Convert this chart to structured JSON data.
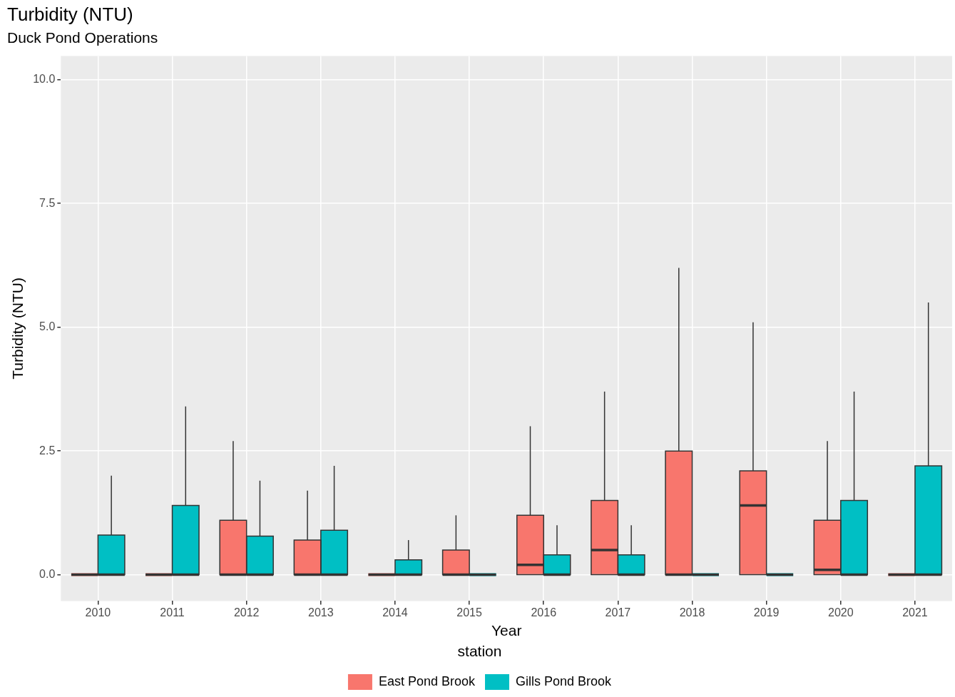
{
  "chart_data": {
    "type": "box",
    "title": "Turbidity (NTU)",
    "subtitle": "Duck Pond Operations",
    "xlabel": "Year",
    "ylabel": "Turbidity (NTU)",
    "legend_title": "station",
    "legend": "bottom",
    "grid": true,
    "categories": [
      "2010",
      "2011",
      "2012",
      "2013",
      "2014",
      "2015",
      "2016",
      "2017",
      "2018",
      "2019",
      "2020",
      "2021"
    ],
    "ylim": [
      -0.53,
      10.48
    ],
    "yticks": [
      {
        "value": 0,
        "label": "0.0"
      },
      {
        "value": 2.5,
        "label": "2.5"
      },
      {
        "value": 5,
        "label": "5.0"
      },
      {
        "value": 7.5,
        "label": "7.5"
      },
      {
        "value": 10,
        "label": "10.0"
      }
    ],
    "series": [
      {
        "name": "East Pond Brook",
        "color": "#f8766d",
        "boxes": [
          {
            "low": 0,
            "q1": 0,
            "median": 0,
            "q3": 0,
            "high": 0
          },
          {
            "low": 0,
            "q1": 0,
            "median": 0,
            "q3": 0,
            "high": 0
          },
          {
            "low": 0,
            "q1": 0,
            "median": 0,
            "q3": 1.1,
            "high": 2.7
          },
          {
            "low": 0,
            "q1": 0,
            "median": 0,
            "q3": 0.7,
            "high": 1.7
          },
          {
            "low": 0,
            "q1": 0,
            "median": 0,
            "q3": 0,
            "high": 0
          },
          {
            "low": 0,
            "q1": 0,
            "median": 0,
            "q3": 0.5,
            "high": 1.2
          },
          {
            "low": 0,
            "q1": 0,
            "median": 0.2,
            "q3": 1.2,
            "high": 3.0
          },
          {
            "low": 0,
            "q1": 0,
            "median": 0.5,
            "q3": 1.5,
            "high": 3.7
          },
          {
            "low": 0,
            "q1": 0,
            "median": 0,
            "q3": 2.5,
            "high": 6.2
          },
          {
            "low": 0,
            "q1": 0,
            "median": 1.4,
            "q3": 2.1,
            "high": 5.1
          },
          {
            "low": 0,
            "q1": 0,
            "median": 0.1,
            "q3": 1.1,
            "high": 2.7
          },
          {
            "low": 0,
            "q1": 0,
            "median": 0,
            "q3": 0,
            "high": 0
          }
        ]
      },
      {
        "name": "Gills Pond Brook",
        "color": "#00bfc4",
        "boxes": [
          {
            "low": 0,
            "q1": 0,
            "median": 0,
            "q3": 0.8,
            "high": 2.0
          },
          {
            "low": 0,
            "q1": 0,
            "median": 0,
            "q3": 1.4,
            "high": 3.4
          },
          {
            "low": 0,
            "q1": 0,
            "median": 0,
            "q3": 0.78,
            "high": 1.9
          },
          {
            "low": 0,
            "q1": 0,
            "median": 0,
            "q3": 0.9,
            "high": 2.2
          },
          {
            "low": 0,
            "q1": 0,
            "median": 0,
            "q3": 0.3,
            "high": 0.7
          },
          {
            "low": 0,
            "q1": 0,
            "median": 0,
            "q3": 0,
            "high": 0
          },
          {
            "low": 0,
            "q1": 0,
            "median": 0,
            "q3": 0.4,
            "high": 1.0
          },
          {
            "low": 0,
            "q1": 0,
            "median": 0,
            "q3": 0.4,
            "high": 1.0
          },
          {
            "low": 0,
            "q1": 0,
            "median": 0,
            "q3": 0,
            "high": 0
          },
          {
            "low": 0,
            "q1": 0,
            "median": 0,
            "q3": 0,
            "high": 0
          },
          {
            "low": 0,
            "q1": 0,
            "median": 0,
            "q3": 1.5,
            "high": 3.7
          },
          {
            "low": 0,
            "q1": 0,
            "median": 0,
            "q3": 2.2,
            "high": 5.5
          }
        ]
      }
    ]
  }
}
